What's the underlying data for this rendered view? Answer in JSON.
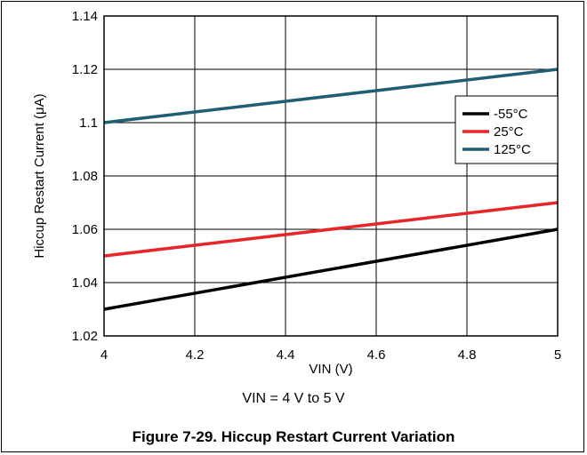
{
  "chart_data": {
    "type": "line",
    "xlabel": "VIN (V)",
    "ylabel": "Hiccup Restart Current (μA)",
    "xlim": [
      4,
      5
    ],
    "ylim": [
      1.02,
      1.14
    ],
    "x_ticks": [
      "4",
      "4.2",
      "4.4",
      "4.6",
      "4.8",
      "5"
    ],
    "y_ticks": [
      "1.02",
      "1.04",
      "1.06",
      "1.08",
      "1.1",
      "1.12",
      "1.14"
    ],
    "grid": true,
    "legend_position": "top-right",
    "series": [
      {
        "name": "-55°C",
        "color": "#000000",
        "x": [
          4,
          5
        ],
        "y": [
          1.03,
          1.06
        ]
      },
      {
        "name": "25°C",
        "color": "#e8262a",
        "x": [
          4,
          5
        ],
        "y": [
          1.05,
          1.07
        ]
      },
      {
        "name": "125°C",
        "color": "#1f5f74",
        "x": [
          4,
          5
        ],
        "y": [
          1.1,
          1.12
        ]
      }
    ]
  },
  "condition_text": "VIN = 4 V to 5 V",
  "caption": "Figure 7-29. Hiccup Restart Current Variation"
}
